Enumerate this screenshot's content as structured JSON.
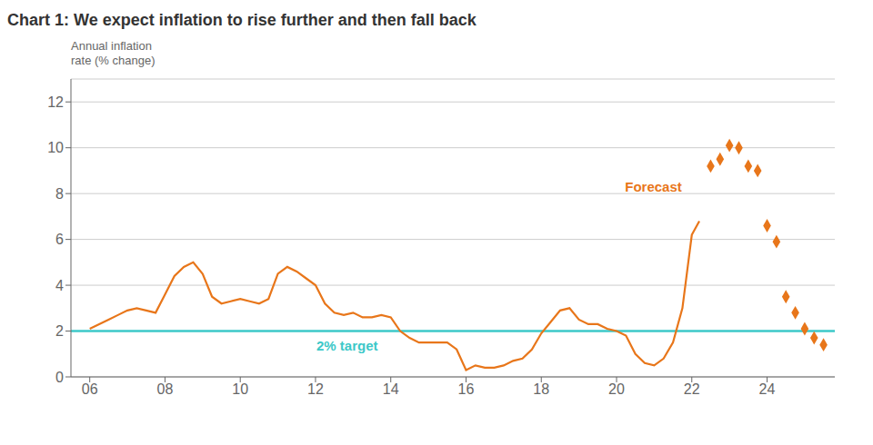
{
  "chart_data": {
    "type": "line",
    "title": "Chart 1: We expect inflation to rise further and then fall back",
    "ylabel": [
      "Annual inflation",
      "rate (% change)"
    ],
    "xlim": [
      5.5,
      25.8
    ],
    "xticks": [
      {
        "value": 6,
        "label": "06"
      },
      {
        "value": 8,
        "label": "08"
      },
      {
        "value": 10,
        "label": "10"
      },
      {
        "value": 12,
        "label": "12"
      },
      {
        "value": 14,
        "label": "14"
      },
      {
        "value": 16,
        "label": "16"
      },
      {
        "value": 18,
        "label": "18"
      },
      {
        "value": 20,
        "label": "20"
      },
      {
        "value": 22,
        "label": "22"
      },
      {
        "value": 24,
        "label": "24"
      }
    ],
    "ylim": [
      0,
      13
    ],
    "yticks": [
      0,
      2,
      4,
      6,
      8,
      10,
      12
    ],
    "grid": "y",
    "series": [
      {
        "type": "line",
        "color": "#e8761a",
        "x": [
          6.0,
          6.25,
          6.5,
          6.75,
          7.0,
          7.25,
          7.5,
          7.75,
          8.0,
          8.25,
          8.5,
          8.75,
          9.0,
          9.25,
          9.5,
          9.75,
          10.0,
          10.25,
          10.5,
          10.75,
          11.0,
          11.25,
          11.5,
          11.75,
          12.0,
          12.25,
          12.5,
          12.75,
          13.0,
          13.25,
          13.5,
          13.75,
          14.0,
          14.25,
          14.5,
          14.75,
          15.0,
          15.25,
          15.5,
          15.75,
          16.0,
          16.25,
          16.5,
          16.75,
          17.0,
          17.25,
          17.5,
          17.75,
          18.0,
          18.25,
          18.5,
          18.75,
          19.0,
          19.25,
          19.5,
          19.75,
          20.0,
          20.25,
          20.5,
          20.75,
          21.0,
          21.25,
          21.5,
          21.75,
          22.0,
          22.1,
          22.2
        ],
        "values": [
          2.1,
          2.3,
          2.5,
          2.7,
          2.9,
          3.0,
          2.9,
          2.8,
          3.6,
          4.4,
          4.8,
          5.0,
          4.5,
          3.5,
          3.2,
          3.3,
          3.4,
          3.3,
          3.2,
          3.4,
          4.5,
          4.8,
          4.6,
          4.3,
          4.0,
          3.2,
          2.8,
          2.7,
          2.8,
          2.6,
          2.6,
          2.7,
          2.6,
          2.0,
          1.7,
          1.5,
          1.5,
          1.5,
          1.5,
          1.2,
          0.3,
          0.5,
          0.4,
          0.4,
          0.5,
          0.7,
          0.8,
          1.2,
          1.9,
          2.4,
          2.9,
          3.0,
          2.5,
          2.3,
          2.3,
          2.1,
          2.0,
          1.8,
          1.0,
          0.6,
          0.5,
          0.8,
          1.5,
          3.0,
          6.2,
          6.5,
          6.8
        ]
      },
      {
        "type": "scatter",
        "color": "#e8761a",
        "marker": "diamond",
        "x": [
          22.5,
          22.75,
          23.0,
          23.25,
          23.5,
          23.75,
          24.0,
          24.25,
          24.5,
          24.75,
          25.0,
          25.25,
          25.5
        ],
        "values": [
          9.2,
          9.5,
          10.1,
          10.0,
          9.2,
          9.0,
          6.6,
          5.9,
          3.5,
          2.8,
          2.1,
          1.7,
          1.4
        ]
      }
    ],
    "annotations": [
      {
        "type": "hline",
        "y": 2,
        "color": "#3cc8c8"
      },
      {
        "type": "text",
        "text": "2% target",
        "x": 12.0,
        "y": 1.35,
        "color": "#3cc8c8"
      },
      {
        "type": "text",
        "text": "Forecast",
        "x": 20.2,
        "y": 8.3,
        "color": "#e8761a"
      }
    ]
  }
}
